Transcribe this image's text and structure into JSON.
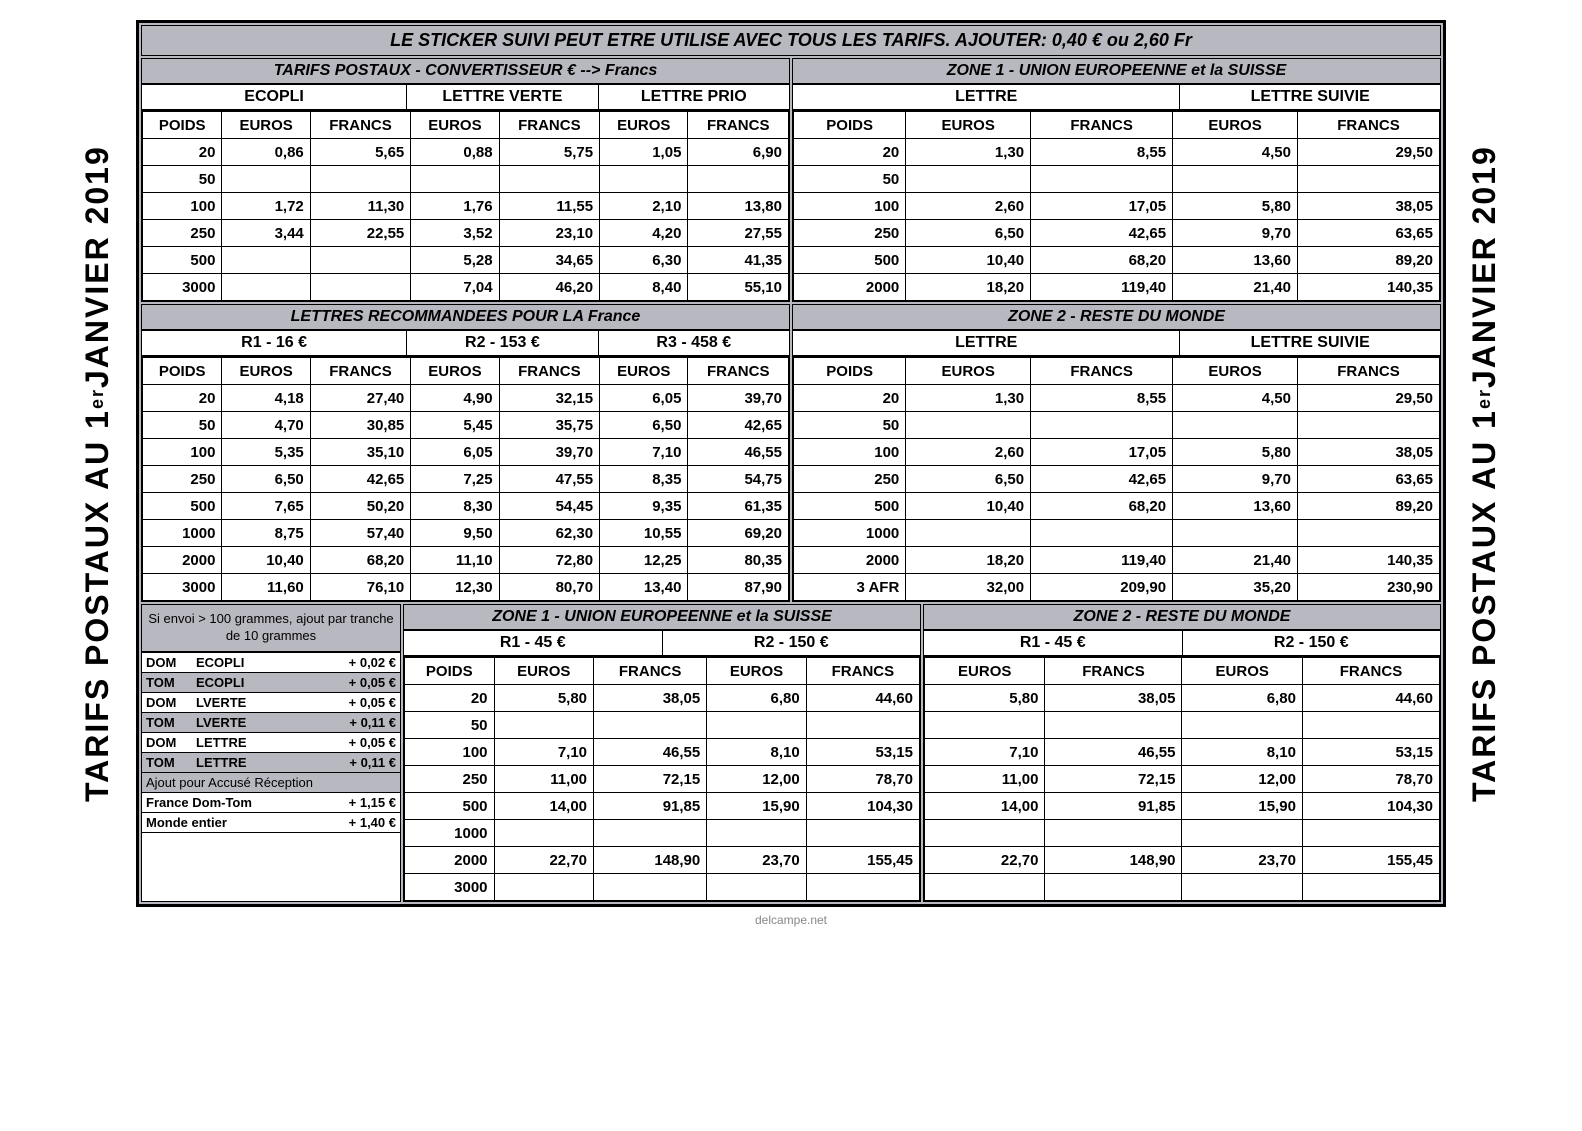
{
  "vertical_title_html": "TARIFS POSTAUX AU 1<sup>er</sup> JANVIER 2019",
  "top_banner": "LE STICKER SUIVI PEUT ETRE UTILISE AVEC TOUS LES TARIFS. AJOUTER: 0,40 € ou 2,60 Fr",
  "footer": "delcampe.net",
  "col_labels": {
    "poids": "POIDS",
    "euros": "EUROS",
    "francs": "FRANCS"
  },
  "tl": {
    "title": "TARIFS POSTAUX - CONVERTISSEUR  € --> Francs",
    "subs": [
      "ECOPLI",
      "LETTRE VERTE",
      "LETTRE PRIO"
    ],
    "rows": [
      {
        "p": "20",
        "e1": "0,86",
        "f1": "5,65",
        "e2": "0,88",
        "f2": "5,75",
        "e3": "1,05",
        "f3": "6,90"
      },
      {
        "p": "50",
        "e1": "",
        "f1": "",
        "e2": "",
        "f2": "",
        "e3": "",
        "f3": ""
      },
      {
        "p": "100",
        "e1": "1,72",
        "f1": "11,30",
        "e2": "1,76",
        "f2": "11,55",
        "e3": "2,10",
        "f3": "13,80"
      },
      {
        "p": "250",
        "e1": "3,44",
        "f1": "22,55",
        "e2": "3,52",
        "f2": "23,10",
        "e3": "4,20",
        "f3": "27,55"
      },
      {
        "p": "500",
        "e1": "",
        "f1": "",
        "e2": "5,28",
        "f2": "34,65",
        "e3": "6,30",
        "f3": "41,35"
      },
      {
        "p": "3000",
        "e1": "",
        "f1": "",
        "e2": "7,04",
        "f2": "46,20",
        "e3": "8,40",
        "f3": "55,10"
      }
    ]
  },
  "tr": {
    "title": "ZONE 1 - UNION EUROPEENNE et la SUISSE",
    "subs": [
      "LETTRE",
      "LETTRE SUIVIE"
    ],
    "rows": [
      {
        "p": "20",
        "e1": "1,30",
        "f1": "8,55",
        "e2": "4,50",
        "f2": "29,50"
      },
      {
        "p": "50",
        "e1": "",
        "f1": "",
        "e2": "",
        "f2": ""
      },
      {
        "p": "100",
        "e1": "2,60",
        "f1": "17,05",
        "e2": "5,80",
        "f2": "38,05"
      },
      {
        "p": "250",
        "e1": "6,50",
        "f1": "42,65",
        "e2": "9,70",
        "f2": "63,65"
      },
      {
        "p": "500",
        "e1": "10,40",
        "f1": "68,20",
        "e2": "13,60",
        "f2": "89,20"
      },
      {
        "p": "2000",
        "e1": "18,20",
        "f1": "119,40",
        "e2": "21,40",
        "f2": "140,35"
      }
    ]
  },
  "ml": {
    "title": "LETTRES RECOMMANDEES POUR LA France",
    "subs": [
      "R1 - 16 €",
      "R2 - 153 €",
      "R3 - 458 €"
    ],
    "rows": [
      {
        "p": "20",
        "e1": "4,18",
        "f1": "27,40",
        "e2": "4,90",
        "f2": "32,15",
        "e3": "6,05",
        "f3": "39,70"
      },
      {
        "p": "50",
        "e1": "4,70",
        "f1": "30,85",
        "e2": "5,45",
        "f2": "35,75",
        "e3": "6,50",
        "f3": "42,65"
      },
      {
        "p": "100",
        "e1": "5,35",
        "f1": "35,10",
        "e2": "6,05",
        "f2": "39,70",
        "e3": "7,10",
        "f3": "46,55"
      },
      {
        "p": "250",
        "e1": "6,50",
        "f1": "42,65",
        "e2": "7,25",
        "f2": "47,55",
        "e3": "8,35",
        "f3": "54,75"
      },
      {
        "p": "500",
        "e1": "7,65",
        "f1": "50,20",
        "e2": "8,30",
        "f2": "54,45",
        "e3": "9,35",
        "f3": "61,35"
      },
      {
        "p": "1000",
        "e1": "8,75",
        "f1": "57,40",
        "e2": "9,50",
        "f2": "62,30",
        "e3": "10,55",
        "f3": "69,20"
      },
      {
        "p": "2000",
        "e1": "10,40",
        "f1": "68,20",
        "e2": "11,10",
        "f2": "72,80",
        "e3": "12,25",
        "f3": "80,35"
      },
      {
        "p": "3000",
        "e1": "11,60",
        "f1": "76,10",
        "e2": "12,30",
        "f2": "80,70",
        "e3": "13,40",
        "f3": "87,90"
      }
    ]
  },
  "mr": {
    "title": "ZONE 2 - RESTE DU MONDE",
    "subs": [
      "LETTRE",
      "LETTRE SUIVIE"
    ],
    "rows": [
      {
        "p": "20",
        "e1": "1,30",
        "f1": "8,55",
        "e2": "4,50",
        "f2": "29,50"
      },
      {
        "p": "50",
        "e1": "",
        "f1": "",
        "e2": "",
        "f2": ""
      },
      {
        "p": "100",
        "e1": "2,60",
        "f1": "17,05",
        "e2": "5,80",
        "f2": "38,05"
      },
      {
        "p": "250",
        "e1": "6,50",
        "f1": "42,65",
        "e2": "9,70",
        "f2": "63,65"
      },
      {
        "p": "500",
        "e1": "10,40",
        "f1": "68,20",
        "e2": "13,60",
        "f2": "89,20"
      },
      {
        "p": "1000",
        "e1": "",
        "f1": "",
        "e2": "",
        "f2": ""
      },
      {
        "p": "2000",
        "e1": "18,20",
        "f1": "119,40",
        "e2": "21,40",
        "f2": "140,35"
      },
      {
        "p": "3 AFR",
        "e1": "32,00",
        "f1": "209,90",
        "e2": "35,20",
        "f2": "230,90"
      }
    ]
  },
  "note": {
    "top": "Si envoi > 100 grammes, ajout par tranche de 10 grammes",
    "rows": [
      {
        "a": "DOM",
        "b": "ECOPLI",
        "c": "+ 0,02 €",
        "gray": false
      },
      {
        "a": "TOM",
        "b": "ECOPLI",
        "c": "+ 0,05 €",
        "gray": true
      },
      {
        "a": "DOM",
        "b": "LVERTE",
        "c": "+ 0,05 €",
        "gray": false
      },
      {
        "a": "TOM",
        "b": "LVERTE",
        "c": "+ 0,11 €",
        "gray": true
      },
      {
        "a": "DOM",
        "b": "LETTRE",
        "c": "+ 0,05 €",
        "gray": false
      },
      {
        "a": "TOM",
        "b": "LETTRE",
        "c": "+ 0,11 €",
        "gray": true
      }
    ],
    "ar_label": "Ajout pour Accusé Réception",
    "ar_rows": [
      {
        "a": "France Dom-Tom",
        "c": "+ 1,15 €"
      },
      {
        "a": "Monde entier",
        "c": "+ 1,40 €"
      }
    ]
  },
  "bl": {
    "title": "ZONE 1 - UNION EUROPEENNE et la SUISSE",
    "subs": [
      "R1 - 45 €",
      "R2 - 150 €"
    ],
    "rows": [
      {
        "p": "20",
        "e1": "5,80",
        "f1": "38,05",
        "e2": "6,80",
        "f2": "44,60"
      },
      {
        "p": "50",
        "e1": "",
        "f1": "",
        "e2": "",
        "f2": ""
      },
      {
        "p": "100",
        "e1": "7,10",
        "f1": "46,55",
        "e2": "8,10",
        "f2": "53,15"
      },
      {
        "p": "250",
        "e1": "11,00",
        "f1": "72,15",
        "e2": "12,00",
        "f2": "78,70"
      },
      {
        "p": "500",
        "e1": "14,00",
        "f1": "91,85",
        "e2": "15,90",
        "f2": "104,30"
      },
      {
        "p": "1000",
        "e1": "",
        "f1": "",
        "e2": "",
        "f2": ""
      },
      {
        "p": "2000",
        "e1": "22,70",
        "f1": "148,90",
        "e2": "23,70",
        "f2": "155,45"
      },
      {
        "p": "3000",
        "e1": "",
        "f1": "",
        "e2": "",
        "f2": ""
      }
    ]
  },
  "br": {
    "title": "ZONE 2 - RESTE DU MONDE",
    "subs": [
      "R1 - 45 €",
      "R2 - 150 €"
    ],
    "rows": [
      {
        "e1": "5,80",
        "f1": "38,05",
        "e2": "6,80",
        "f2": "44,60"
      },
      {
        "e1": "",
        "f1": "",
        "e2": "",
        "f2": ""
      },
      {
        "e1": "7,10",
        "f1": "46,55",
        "e2": "8,10",
        "f2": "53,15"
      },
      {
        "e1": "11,00",
        "f1": "72,15",
        "e2": "12,00",
        "f2": "78,70"
      },
      {
        "e1": "14,00",
        "f1": "91,85",
        "e2": "15,90",
        "f2": "104,30"
      },
      {
        "e1": "",
        "f1": "",
        "e2": "",
        "f2": ""
      },
      {
        "e1": "22,70",
        "f1": "148,90",
        "e2": "23,70",
        "f2": "155,45"
      },
      {
        "e1": "",
        "f1": "",
        "e2": "",
        "f2": ""
      }
    ]
  }
}
